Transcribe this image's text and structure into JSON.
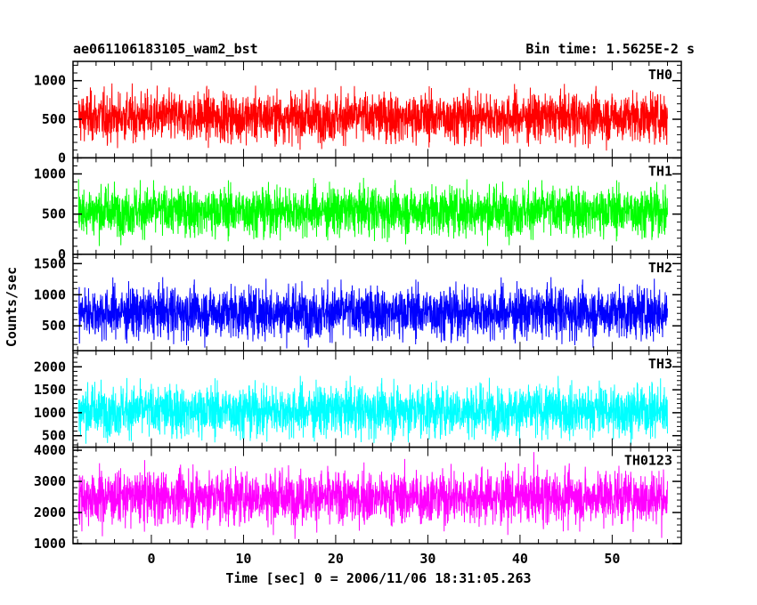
{
  "header": {
    "left_title": "ae061106183105_wam2_bst",
    "right_title": "Bin time: 1.5625E-2 s"
  },
  "chart_data": {
    "type": "line",
    "title": "ae061106183105_wam2_bst",
    "subtitle": "Bin time: 1.5625E-2 s",
    "xlabel": "Time [sec] 0 = 2006/11/06 18:31:05.263",
    "ylabel": "Counts/sec",
    "xlim": [
      -8.5,
      57.5
    ],
    "x_ticks": [
      0,
      10,
      20,
      30,
      40,
      50
    ],
    "x_tick_labels": [
      "0",
      "10",
      "20",
      "30",
      "40",
      "50"
    ],
    "x_data_range": [
      -7.9,
      56.0
    ],
    "panels": [
      {
        "name": "TH0",
        "color": "#ff0000",
        "ylim": [
          0,
          1250
        ],
        "y_ticks": [
          0,
          500,
          1000
        ],
        "y_tick_labels": [
          "0",
          "500",
          "1000"
        ],
        "mean": 530,
        "min": 90,
        "max": 1250
      },
      {
        "name": "TH1",
        "color": "#00ff00",
        "ylim": [
          0,
          1200
        ],
        "y_ticks": [
          0,
          500,
          1000
        ],
        "y_tick_labels": [
          "0",
          "500",
          "1000"
        ],
        "mean": 540,
        "min": 90,
        "max": 1200
      },
      {
        "name": "TH2",
        "color": "#0000ff",
        "ylim": [
          100,
          1650
        ],
        "y_ticks": [
          500,
          1000,
          1500
        ],
        "y_tick_labels": [
          "500",
          "1000",
          "1500"
        ],
        "mean": 720,
        "min": 120,
        "max": 1640
      },
      {
        "name": "TH3",
        "color": "#00ffff",
        "ylim": [
          250,
          2350
        ],
        "y_ticks": [
          500,
          1000,
          1500,
          2000
        ],
        "y_tick_labels": [
          "500",
          "1000",
          "1500",
          "2000"
        ],
        "mean": 1050,
        "min": 300,
        "max": 2340
      },
      {
        "name": "TH0123",
        "color": "#ff00ff",
        "ylim": [
          1000,
          4100
        ],
        "y_ticks": [
          1000,
          2000,
          3000,
          4000
        ],
        "y_tick_labels": [
          "1000",
          "2000",
          "3000",
          "4000"
        ],
        "mean": 2500,
        "min": 1000,
        "max": 4100
      }
    ]
  }
}
